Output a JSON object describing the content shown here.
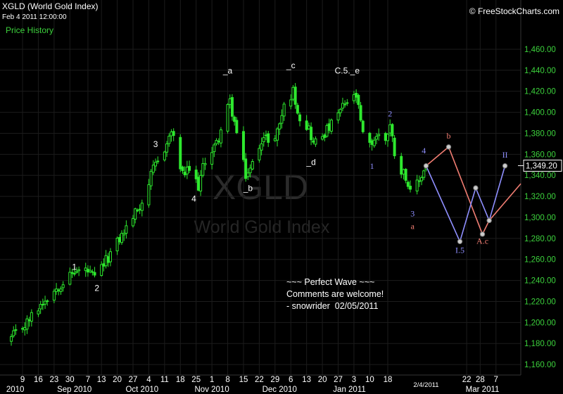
{
  "header": {
    "title": "XGLD (World Gold Index)",
    "datetime": "Feb 4 2011 12:00:00",
    "source": "© FreeStockCharts.com",
    "panel_label": "Price History"
  },
  "watermark": {
    "symbol": "XGLD",
    "name": "World Gold Index"
  },
  "note": {
    "lines": [
      "~~~ Perfect Wave ~~~",
      "Comments are welcome!",
      "- snowrider  02/05/2011"
    ]
  },
  "colors": {
    "background": "#000000",
    "candles": "#2ee82e",
    "grid": "#1c1c1c",
    "axis_text": "#3cd13c",
    "wave_salmon": "#f07d72",
    "wave_blue": "#8f8fff",
    "label_white": "#ffffff"
  },
  "chart_data": {
    "type": "candlestick",
    "ylim": [
      1150,
      1470
    ],
    "y_ticks": [
      1160,
      1180,
      1200,
      1220,
      1240,
      1260,
      1280,
      1300,
      1320,
      1340,
      1360,
      1380,
      1400,
      1420,
      1440,
      1460
    ],
    "y_tick_labels": [
      "1,160.00",
      "1,180.00",
      "1,200.00",
      "1,220.00",
      "1,240.00",
      "1,260.00",
      "1,280.00",
      "1,300.00",
      "1,320.00",
      "1,340.00",
      "1,360.00",
      "1,380.00",
      "1,400.00",
      "1,420.00",
      "1,440.00",
      "1,460.00"
    ],
    "last_price": 1349.2,
    "last_price_label": "1,349.20",
    "x_day_ticks": [
      {
        "d": "2010-08-09",
        "label": "9"
      },
      {
        "d": "2010-08-16",
        "label": "16"
      },
      {
        "d": "2010-08-23",
        "label": "23"
      },
      {
        "d": "2010-08-30",
        "label": "30"
      },
      {
        "d": "2010-09-07",
        "label": "7"
      },
      {
        "d": "2010-09-13",
        "label": "13"
      },
      {
        "d": "2010-09-20",
        "label": "20"
      },
      {
        "d": "2010-09-27",
        "label": "27"
      },
      {
        "d": "2010-10-04",
        "label": "4"
      },
      {
        "d": "2010-10-11",
        "label": "11"
      },
      {
        "d": "2010-10-18",
        "label": "18"
      },
      {
        "d": "2010-10-25",
        "label": "25"
      },
      {
        "d": "2010-11-01",
        "label": "1"
      },
      {
        "d": "2010-11-08",
        "label": "8"
      },
      {
        "d": "2010-11-15",
        "label": "15"
      },
      {
        "d": "2010-11-22",
        "label": "22"
      },
      {
        "d": "2010-11-29",
        "label": "29"
      },
      {
        "d": "2010-12-06",
        "label": "6"
      },
      {
        "d": "2010-12-13",
        "label": "13"
      },
      {
        "d": "2010-12-20",
        "label": "20"
      },
      {
        "d": "2010-12-27",
        "label": "27"
      },
      {
        "d": "2011-01-03",
        "label": "3"
      },
      {
        "d": "2011-01-10",
        "label": "10"
      },
      {
        "d": "2011-01-18",
        "label": "18"
      },
      {
        "d": "2011-02-22",
        "label": "22"
      },
      {
        "d": "2011-02-28",
        "label": "28"
      },
      {
        "d": "2011-03-07",
        "label": "7"
      }
    ],
    "x_month_ticks": [
      {
        "d": "2010-08-01",
        "label": "2010"
      },
      {
        "d": "2010-09-01",
        "label": "Sep 2010"
      },
      {
        "d": "2010-10-01",
        "label": "Oct 2010"
      },
      {
        "d": "2010-11-01",
        "label": "Nov 2010"
      },
      {
        "d": "2010-12-01",
        "label": "Dec 2010"
      },
      {
        "d": "2011-01-01",
        "label": "Jan 2011"
      },
      {
        "d": "2011-03-01",
        "label": "Mar 2011"
      }
    ],
    "current_date_label": {
      "d": "2011-02-04",
      "label": "2/4/2011"
    },
    "trend": [
      [
        "2010-08-04",
        1185
      ],
      [
        "2010-08-11",
        1200
      ],
      [
        "2010-08-18",
        1220
      ],
      [
        "2010-08-25",
        1235
      ],
      [
        "2010-09-01",
        1248
      ],
      [
        "2010-09-06",
        1250
      ],
      [
        "2010-09-10",
        1242
      ],
      [
        "2010-09-16",
        1262
      ],
      [
        "2010-09-24",
        1290
      ],
      [
        "2010-10-01",
        1315
      ],
      [
        "2010-10-06",
        1345
      ],
      [
        "2010-10-12",
        1370
      ],
      [
        "2010-10-14",
        1382
      ],
      [
        "2010-10-19",
        1340
      ],
      [
        "2010-10-22",
        1345
      ],
      [
        "2010-10-26",
        1330
      ],
      [
        "2010-10-29",
        1355
      ],
      [
        "2010-11-03",
        1370
      ],
      [
        "2010-11-09",
        1410
      ],
      [
        "2010-11-12",
        1380
      ],
      [
        "2010-11-16",
        1340
      ],
      [
        "2010-11-18",
        1345
      ],
      [
        "2010-11-23",
        1375
      ],
      [
        "2010-11-29",
        1375
      ],
      [
        "2010-12-03",
        1405
      ],
      [
        "2010-12-07",
        1420
      ],
      [
        "2010-12-10",
        1395
      ],
      [
        "2010-12-14",
        1385
      ],
      [
        "2010-12-16",
        1370
      ],
      [
        "2010-12-20",
        1378
      ],
      [
        "2010-12-24",
        1388
      ],
      [
        "2010-12-30",
        1408
      ],
      [
        "2011-01-04",
        1415
      ],
      [
        "2011-01-07",
        1378
      ],
      [
        "2011-01-10",
        1368
      ],
      [
        "2011-01-13",
        1378
      ],
      [
        "2011-01-17",
        1375
      ],
      [
        "2011-01-19",
        1388
      ],
      [
        "2011-01-21",
        1362
      ],
      [
        "2011-01-24",
        1345
      ],
      [
        "2011-01-26",
        1340
      ],
      [
        "2011-01-28",
        1322
      ],
      [
        "2011-02-01",
        1335
      ],
      [
        "2011-02-04",
        1349
      ]
    ],
    "wave_paths": [
      {
        "color": "salmon",
        "points": [
          [
            "2011-02-04",
            1349
          ],
          [
            "2011-02-14",
            1367
          ],
          [
            "2011-03-01",
            1284
          ],
          [
            "2011-03-04",
            1297
          ],
          [
            "2011-03-18",
            1332
          ]
        ]
      },
      {
        "color": "blue",
        "points": [
          [
            "2011-02-04",
            1349
          ],
          [
            "2011-02-19",
            1277
          ],
          [
            "2011-02-26",
            1328
          ],
          [
            "2011-03-04",
            1297
          ],
          [
            "2011-03-11",
            1349
          ]
        ]
      }
    ],
    "wave_nodes": [
      [
        "2011-02-04",
        1349
      ],
      [
        "2011-02-14",
        1367
      ],
      [
        "2011-02-19",
        1277
      ],
      [
        "2011-02-26",
        1328
      ],
      [
        "2011-03-01",
        1284
      ],
      [
        "2011-03-04",
        1297
      ],
      [
        "2011-03-11",
        1349
      ]
    ],
    "annotations": [
      {
        "text": "1",
        "d": "2010-09-01",
        "y": 1250,
        "color": "white"
      },
      {
        "text": "2",
        "d": "2010-09-11",
        "y": 1230,
        "color": "white"
      },
      {
        "text": "3",
        "d": "2010-10-07",
        "y": 1367,
        "color": "white"
      },
      {
        "text": "4",
        "d": "2010-10-24",
        "y": 1315,
        "color": "white"
      },
      {
        "text": "_a",
        "d": "2010-11-08",
        "y": 1437,
        "color": "white"
      },
      {
        "text": "_b",
        "d": "2010-11-17",
        "y": 1325,
        "color": "white"
      },
      {
        "text": "_c",
        "d": "2010-12-06",
        "y": 1442,
        "color": "white"
      },
      {
        "text": "_d",
        "d": "2010-12-15",
        "y": 1350,
        "color": "white"
      },
      {
        "text": "C.5._e",
        "d": "2010-12-31",
        "y": 1437,
        "color": "white"
      },
      {
        "text": "1",
        "d": "2011-01-11",
        "y": 1346,
        "color": "blue"
      },
      {
        "text": "2",
        "d": "2011-01-19",
        "y": 1396,
        "color": "blue"
      },
      {
        "text": "3",
        "d": "2011-01-29",
        "y": 1301,
        "color": "blue"
      },
      {
        "text": "a",
        "d": "2011-01-29",
        "y": 1289,
        "color": "salmon"
      },
      {
        "text": "4",
        "d": "2011-02-03",
        "y": 1361,
        "color": "blue"
      },
      {
        "text": "b",
        "d": "2011-02-14",
        "y": 1375,
        "color": "salmon"
      },
      {
        "text": "I.5",
        "d": "2011-02-19",
        "y": 1266,
        "color": "blue"
      },
      {
        "text": "A.c",
        "d": "2011-03-01",
        "y": 1275,
        "color": "salmon"
      },
      {
        "text": "II",
        "d": "2011-03-11",
        "y": 1357,
        "color": "blue"
      }
    ]
  }
}
